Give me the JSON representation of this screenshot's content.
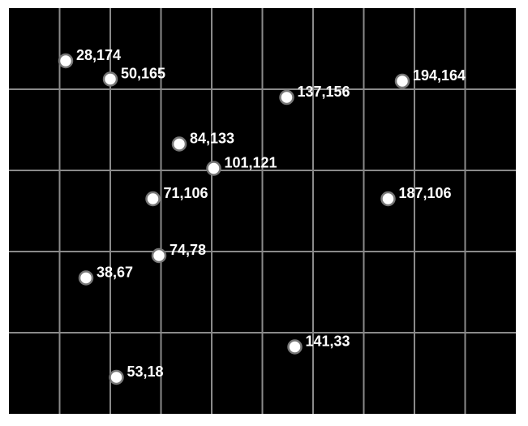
{
  "colors": {
    "background": "#000000",
    "grid": "#8a8a8a",
    "point_fill": "#ffffff",
    "point_stroke": "#777777",
    "label": "#ffffff"
  },
  "chart_data": {
    "type": "scatter",
    "xlim": [
      0,
      250
    ],
    "ylim": [
      0,
      200
    ],
    "grid": true,
    "x_gridlines": [
      25,
      50,
      75,
      100,
      125,
      150,
      175,
      200,
      225
    ],
    "y_gridlines": [
      40,
      80,
      120,
      160
    ],
    "points": [
      {
        "x": 28,
        "y": 174,
        "label": "28,174"
      },
      {
        "x": 50,
        "y": 165,
        "label": "50,165"
      },
      {
        "x": 137,
        "y": 156,
        "label": "137,156"
      },
      {
        "x": 194,
        "y": 164,
        "label": "194,164"
      },
      {
        "x": 84,
        "y": 133,
        "label": "84,133"
      },
      {
        "x": 101,
        "y": 121,
        "label": "101,121"
      },
      {
        "x": 71,
        "y": 106,
        "label": "71,106"
      },
      {
        "x": 187,
        "y": 106,
        "label": "187,106"
      },
      {
        "x": 74,
        "y": 78,
        "label": "74,78"
      },
      {
        "x": 38,
        "y": 67,
        "label": "38,67"
      },
      {
        "x": 141,
        "y": 33,
        "label": "141,33"
      },
      {
        "x": 53,
        "y": 18,
        "label": "53,18"
      }
    ]
  }
}
